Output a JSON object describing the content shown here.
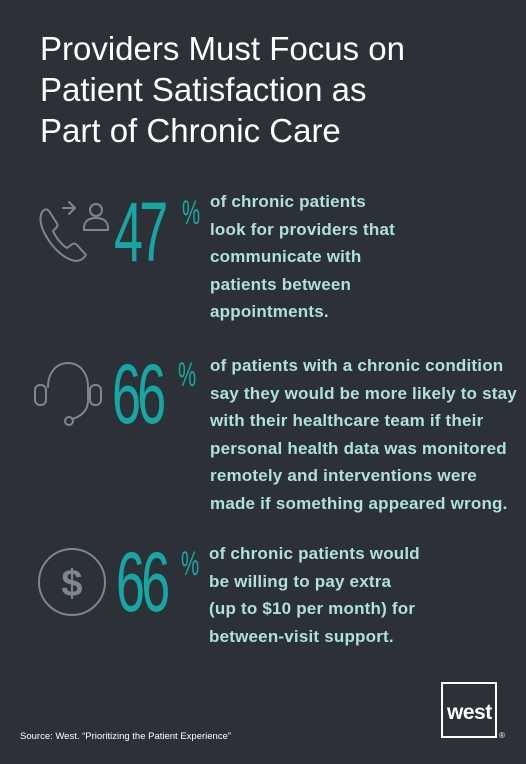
{
  "title": {
    "line1": "Providers Must Focus on",
    "line2": "Patient Satisfaction as",
    "line3": "Part of Chronic Care"
  },
  "stats": [
    {
      "icon": "phone-contact-icon",
      "number": "47",
      "percent": "%",
      "lines": [
        "of chronic patients",
        "look for providers that",
        "communicate with",
        "patients between",
        "appointments."
      ]
    },
    {
      "icon": "headset-support-icon",
      "number": "66",
      "percent": "%",
      "lines": [
        "of patients with a chronic condition",
        "say they would be more likely to stay",
        "with their healthcare team if their",
        "personal health data was monitored",
        "remotely and interventions were",
        "made if something appeared wrong."
      ]
    },
    {
      "icon": "dollar-coin-icon",
      "number": "66",
      "percent": "%",
      "lines": [
        "of chronic patients would",
        "be willing to pay extra",
        "(up to $10 per month) for",
        "between-visit support."
      ]
    }
  ],
  "source": "Source:  West. “Prioritizing the Patient Experience”",
  "logo": {
    "text": "west",
    "registered": "®"
  },
  "colors": {
    "background": "#2c3137",
    "accent": "#16a7a4",
    "body_text": "#aee0de",
    "icon": "#7f868d"
  }
}
